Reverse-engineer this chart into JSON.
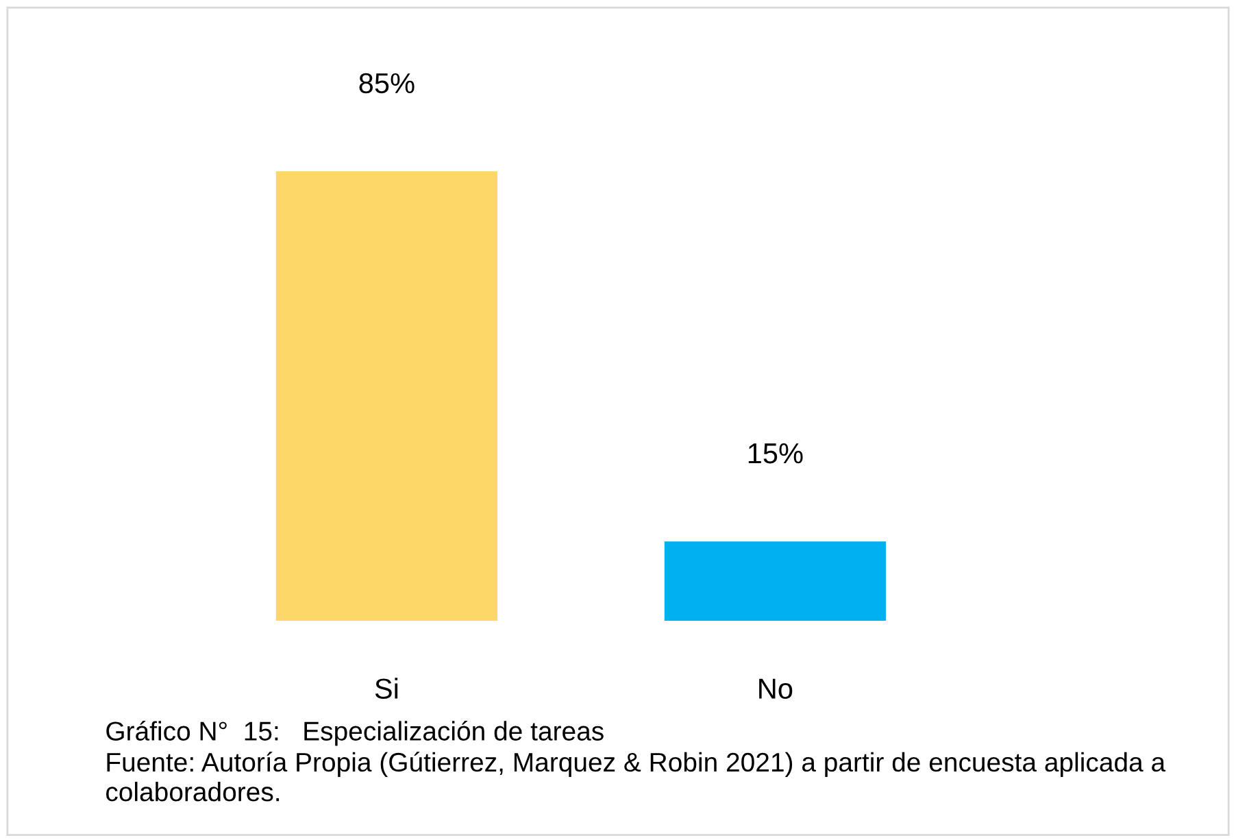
{
  "chart_data": {
    "type": "bar",
    "categories": [
      "Si",
      "No"
    ],
    "values": [
      85,
      15
    ],
    "colors": [
      "#fdd868",
      "#00b0f0"
    ],
    "value_labels": [
      "85%",
      "15%"
    ],
    "grid": false,
    "legend": false,
    "annotations": [
      "Gráfico N°  15:   Especialización de tareas",
      "Fuente: Autoría Propia (Gútierrez, Marquez & Robin 2021) a partir de encuesta aplicada a colaboradores."
    ]
  }
}
